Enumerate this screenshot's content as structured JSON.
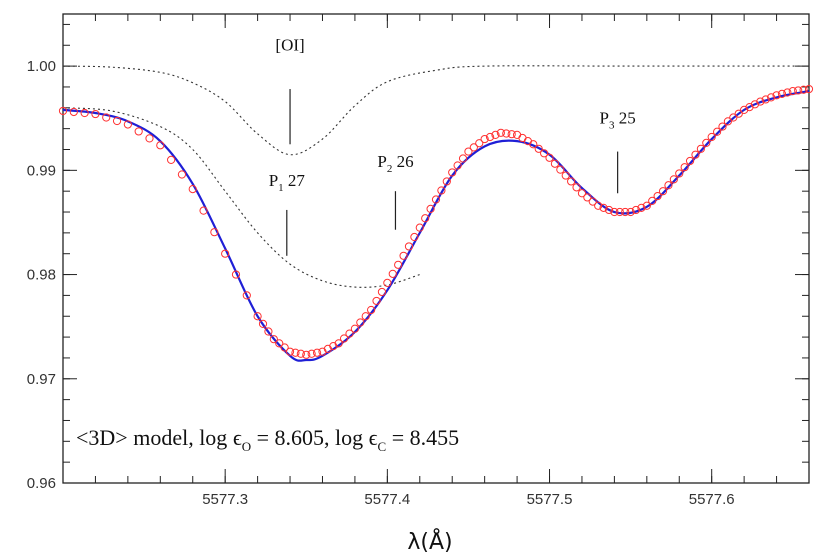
{
  "chart_data": {
    "type": "line",
    "title": "",
    "xlabel": "λ(Å)",
    "ylabel": "",
    "xlim": [
      5577.2,
      5577.66
    ],
    "ylim": [
      0.96,
      1.005
    ],
    "grid": false,
    "x_ticks": [
      5577.3,
      5577.4,
      5577.5,
      5577.6
    ],
    "x_tick_labels": [
      "5577.3",
      "5577.4",
      "5577.5",
      "5577.6"
    ],
    "y_ticks": [
      0.96,
      0.97,
      0.98,
      0.99,
      1.0
    ],
    "y_tick_labels": [
      "0.96",
      "0.97",
      "0.98",
      "0.99",
      "1.00"
    ],
    "series": [
      {
        "style": "dotted",
        "color": "#333333",
        "points": [
          [
            5577.2,
            1.0
          ],
          [
            5577.23,
            0.9999
          ],
          [
            5577.26,
            0.9994
          ],
          [
            5577.28,
            0.9984
          ],
          [
            5577.3,
            0.9966
          ],
          [
            5577.32,
            0.9935
          ],
          [
            5577.34,
            0.9915
          ],
          [
            5577.36,
            0.993
          ],
          [
            5577.38,
            0.9962
          ],
          [
            5577.4,
            0.9985
          ],
          [
            5577.43,
            0.9996
          ],
          [
            5577.46,
            1.0
          ],
          [
            5577.55,
            1.0
          ],
          [
            5577.66,
            1.0
          ]
        ]
      },
      {
        "style": "dotted",
        "color": "#333333",
        "points": [
          [
            5577.2,
            0.996
          ],
          [
            5577.23,
            0.9957
          ],
          [
            5577.26,
            0.9942
          ],
          [
            5577.28,
            0.992
          ],
          [
            5577.3,
            0.988
          ],
          [
            5577.32,
            0.984
          ],
          [
            5577.34,
            0.981
          ],
          [
            5577.36,
            0.9794
          ],
          [
            5577.38,
            0.9788
          ],
          [
            5577.4,
            0.979
          ],
          [
            5577.42,
            0.98
          ]
        ]
      },
      {
        "style": "solid",
        "color": "#1f1fd6",
        "points": [
          [
            5577.2,
            0.9958
          ],
          [
            5577.22,
            0.9955
          ],
          [
            5577.24,
            0.9947
          ],
          [
            5577.26,
            0.9928
          ],
          [
            5577.28,
            0.9887
          ],
          [
            5577.3,
            0.9825
          ],
          [
            5577.32,
            0.976
          ],
          [
            5577.34,
            0.9722
          ],
          [
            5577.35,
            0.9718
          ],
          [
            5577.36,
            0.9722
          ],
          [
            5577.38,
            0.9745
          ],
          [
            5577.4,
            0.9785
          ],
          [
            5577.42,
            0.984
          ],
          [
            5577.44,
            0.9895
          ],
          [
            5577.46,
            0.9923
          ],
          [
            5577.48,
            0.9928
          ],
          [
            5577.5,
            0.9915
          ],
          [
            5577.52,
            0.9883
          ],
          [
            5577.54,
            0.986
          ],
          [
            5577.56,
            0.9865
          ],
          [
            5577.58,
            0.9895
          ],
          [
            5577.6,
            0.993
          ],
          [
            5577.62,
            0.9958
          ],
          [
            5577.64,
            0.997
          ],
          [
            5577.66,
            0.9976
          ]
        ]
      },
      {
        "style": "circles",
        "color": "#ff3030",
        "points": [
          [
            5577.2,
            0.9957
          ],
          [
            5577.22,
            0.9954
          ],
          [
            5577.24,
            0.9944
          ],
          [
            5577.26,
            0.9924
          ],
          [
            5577.28,
            0.9882
          ],
          [
            5577.3,
            0.982
          ],
          [
            5577.32,
            0.976
          ],
          [
            5577.33,
            0.9738
          ],
          [
            5577.34,
            0.9726
          ],
          [
            5577.35,
            0.9723
          ],
          [
            5577.36,
            0.9726
          ],
          [
            5577.37,
            0.9734
          ],
          [
            5577.38,
            0.9748
          ],
          [
            5577.39,
            0.9766
          ],
          [
            5577.4,
            0.9792
          ],
          [
            5577.41,
            0.9818
          ],
          [
            5577.42,
            0.9845
          ],
          [
            5577.43,
            0.9872
          ],
          [
            5577.44,
            0.9898
          ],
          [
            5577.45,
            0.9918
          ],
          [
            5577.46,
            0.993
          ],
          [
            5577.47,
            0.9936
          ],
          [
            5577.48,
            0.9934
          ],
          [
            5577.49,
            0.9925
          ],
          [
            5577.5,
            0.9912
          ],
          [
            5577.51,
            0.9895
          ],
          [
            5577.52,
            0.9878
          ],
          [
            5577.53,
            0.9866
          ],
          [
            5577.54,
            0.986
          ],
          [
            5577.55,
            0.986
          ],
          [
            5577.56,
            0.9866
          ],
          [
            5577.57,
            0.988
          ],
          [
            5577.58,
            0.9897
          ],
          [
            5577.59,
            0.9915
          ],
          [
            5577.6,
            0.9932
          ],
          [
            5577.61,
            0.9947
          ],
          [
            5577.62,
            0.9958
          ],
          [
            5577.63,
            0.9966
          ],
          [
            5577.64,
            0.9972
          ],
          [
            5577.65,
            0.9976
          ],
          [
            5577.66,
            0.9978
          ]
        ]
      }
    ],
    "annotations": [
      {
        "id": "oi",
        "label": "[OI]",
        "sub": "",
        "tail": "",
        "x": 5577.34,
        "line_top": 0.9978,
        "line_bottom": 0.9925,
        "text_y": 1.0015
      },
      {
        "id": "p1",
        "label": "P",
        "sub": "1",
        "tail": " 27",
        "x": 5577.338,
        "line_top": 0.9862,
        "line_bottom": 0.9818,
        "text_y": 0.9885
      },
      {
        "id": "p2",
        "label": "P",
        "sub": "2",
        "tail": " 26",
        "x": 5577.405,
        "line_top": 0.988,
        "line_bottom": 0.9843,
        "text_y": 0.9903
      },
      {
        "id": "p3",
        "label": "P",
        "sub": "3",
        "tail": " 25",
        "x": 5577.542,
        "line_top": 0.9918,
        "line_bottom": 0.9878,
        "text_y": 0.9945
      }
    ],
    "model_text": {
      "prefix": "<3D> model, log ",
      "eps_o_sub": "O",
      "mid": " = 8.605, log ",
      "eps_c_sub": "C",
      "suffix": " = 8.455"
    },
    "eps_symbol": "ϵ"
  }
}
